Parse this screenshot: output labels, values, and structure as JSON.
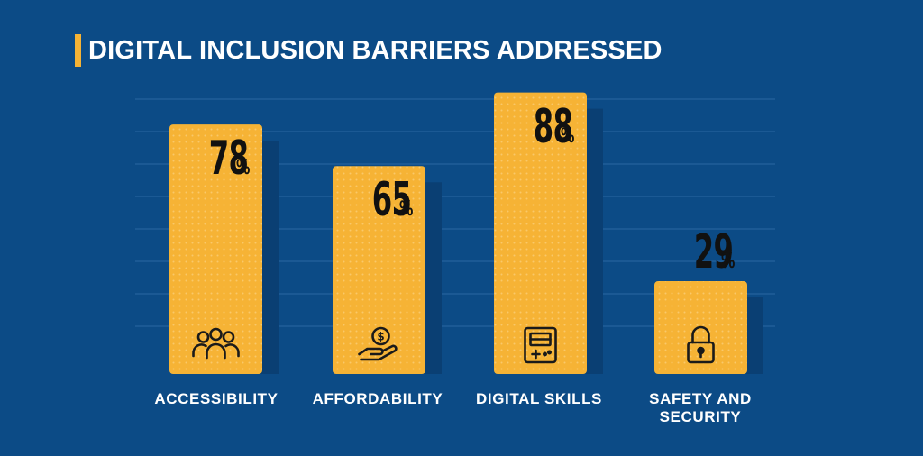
{
  "colors": {
    "background": "#0c4b86",
    "bar": "#f6b335",
    "bar_dots": "#f9c96a",
    "bar_shadow": "#0a3f73",
    "gridline": "#2a67a3",
    "accent": "#f6b335"
  },
  "chart_data": {
    "type": "bar",
    "title": "DIGITAL INCLUSION BARRIERS ADDRESSED",
    "categories": [
      "ACCESSIBILITY",
      "AFFORDABILITY",
      "DIGITAL SKILLS",
      "SAFETY AND SECURITY"
    ],
    "values": [
      78,
      65,
      88,
      29
    ],
    "value_suffix": "%",
    "ylim": [
      0,
      100
    ],
    "grid": true,
    "icons": [
      "people-group-icon",
      "hand-coin-icon",
      "game-console-icon",
      "padlock-icon"
    ]
  }
}
